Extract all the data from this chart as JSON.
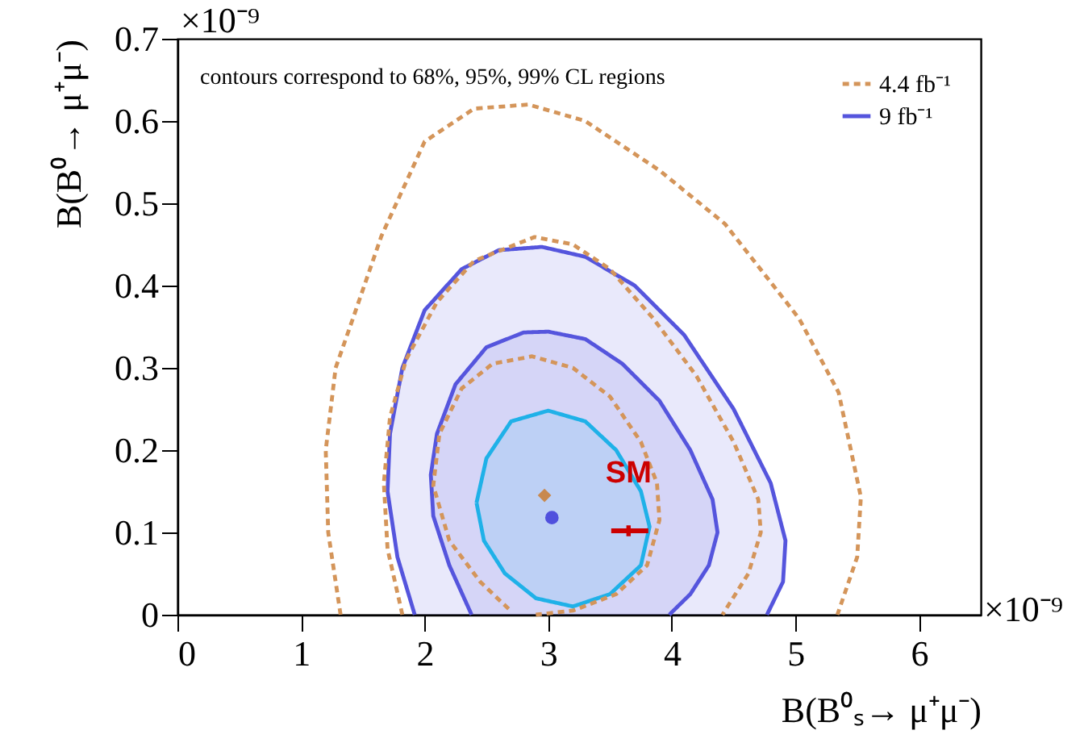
{
  "chart_data": {
    "type": "line",
    "xlabel": "B(B⁰ₛ→ μ⁺μ⁻)",
    "ylabel": "B(B⁰→ μ⁺μ⁻)",
    "xlim": [
      0,
      6.5
    ],
    "ylim": [
      0,
      0.7
    ],
    "xticks": [
      0,
      1,
      2,
      3,
      4,
      5,
      6
    ],
    "yticks": [
      0,
      0.1,
      0.2,
      0.3,
      0.4,
      0.5,
      0.6,
      0.7
    ],
    "legend": "top right",
    "annotations": [
      "contours correspond to 68%, 95%, 99% CL regions",
      "×10⁻⁹",
      "×10⁻⁹",
      {
        "text": "SM",
        "x": 3.65,
        "y": 0.102
      }
    ],
    "series": [
      {
        "name": "4.4 fb⁻¹",
        "line_style": "dashed",
        "color": "#d4955a",
        "x": [
          1.32,
          1.22,
          1.2,
          1.28,
          1.42,
          1.65,
          2.0,
          2.4,
          2.84,
          3.3,
          3.9,
          4.43,
          5.03,
          5.35,
          5.53,
          5.5,
          5.34
        ],
        "values": [
          0,
          0.1,
          0.2,
          0.3,
          0.36,
          0.46,
          0.575,
          0.615,
          0.62,
          0.6,
          0.54,
          0.475,
          0.36,
          0.27,
          0.143,
          0.07,
          0
        ]
      },
      {
        "line_style": "dashed",
        "color": "#d4955a",
        "x": [
          1.82,
          1.7,
          1.67,
          1.72,
          1.85,
          2.1,
          2.4,
          2.89,
          3.2,
          3.5,
          3.85,
          4.2,
          4.5,
          4.7,
          4.72,
          4.62,
          4.41
        ],
        "values": [
          0,
          0.08,
          0.16,
          0.24,
          0.31,
          0.38,
          0.43,
          0.459,
          0.45,
          0.42,
          0.36,
          0.29,
          0.21,
          0.14,
          0.1,
          0.05,
          0
        ]
      },
      {
        "line_style": "dashed",
        "color": "#d4955a",
        "x": [
          2.68,
          2.45,
          2.2,
          2.07,
          2.12,
          2.3,
          2.55,
          2.87,
          3.2,
          3.5,
          3.75,
          3.88,
          3.9,
          3.8,
          3.55,
          3.2,
          2.9
        ],
        "values": [
          0.007,
          0.04,
          0.09,
          0.157,
          0.22,
          0.275,
          0.305,
          0.314,
          0.3,
          0.265,
          0.21,
          0.16,
          0.115,
          0.06,
          0.025,
          0.005,
          0
        ]
      },
      {
        "name": "9 fb⁻¹",
        "type": "area",
        "line_style": "solid",
        "color": "#5555dd",
        "x": [
          1.92,
          1.78,
          1.7,
          1.72,
          1.82,
          2.0,
          2.3,
          2.6,
          2.95,
          3.3,
          3.7,
          4.1,
          4.5,
          4.8,
          4.92,
          4.9,
          4.77
        ],
        "values": [
          0,
          0.07,
          0.15,
          0.22,
          0.3,
          0.37,
          0.42,
          0.443,
          0.447,
          0.435,
          0.4,
          0.34,
          0.25,
          0.16,
          0.09,
          0.04,
          0
        ]
      },
      {
        "type": "area",
        "line_style": "solid",
        "color": "#5555dd",
        "x": [
          2.38,
          2.2,
          2.07,
          2.05,
          2.1,
          2.25,
          2.5,
          2.8,
          3.0,
          3.3,
          3.6,
          3.9,
          4.15,
          4.33,
          4.37,
          4.3,
          4.15,
          3.98
        ],
        "values": [
          0,
          0.06,
          0.12,
          0.17,
          0.22,
          0.28,
          0.325,
          0.343,
          0.344,
          0.335,
          0.305,
          0.26,
          0.2,
          0.14,
          0.1,
          0.06,
          0.025,
          0
        ]
      },
      {
        "type": "area",
        "line_style": "solid",
        "color": "#1fb1e8",
        "x": [
          2.42,
          2.5,
          2.7,
          3.0,
          3.3,
          3.55,
          3.75,
          3.82,
          3.75,
          3.5,
          3.2,
          2.9,
          2.65,
          2.48,
          2.42
        ],
        "values": [
          0.136,
          0.19,
          0.235,
          0.248,
          0.235,
          0.2,
          0.15,
          0.107,
          0.06,
          0.025,
          0.01,
          0.02,
          0.05,
          0.09,
          0.136
        ]
      },
      {
        "type": "scatter",
        "marker": "diamond",
        "color": "#c8894f",
        "x": [
          2.97
        ],
        "values": [
          0.145
        ]
      },
      {
        "type": "scatter",
        "marker": "circle",
        "color": "#5050dd",
        "x": [
          3.03
        ],
        "values": [
          0.118
        ]
      },
      {
        "type": "scatter",
        "marker": "cross",
        "color": "#cc0000",
        "x": [
          3.65
        ],
        "values": [
          0.102
        ],
        "xerrors": [
          [
            3.51,
            3.81
          ]
        ]
      }
    ]
  }
}
